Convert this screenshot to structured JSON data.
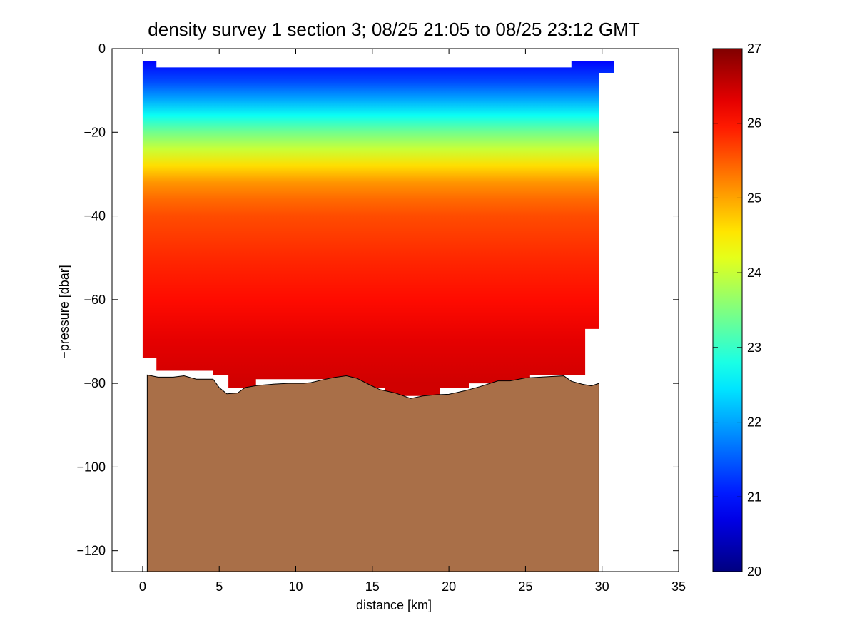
{
  "chart_data": {
    "type": "heatmap",
    "title": "density survey 1 section 3; 08/25 21:05 to 08/25 23:12 GMT",
    "xlabel": "distance [km]",
    "ylabel": "−pressure [dbar]",
    "xlim": [
      -2,
      35
    ],
    "ylim": [
      -125,
      0
    ],
    "x_ticks": [
      0,
      5,
      10,
      15,
      20,
      25,
      30,
      35
    ],
    "x_tick_labels": [
      "0",
      "5",
      "10",
      "15",
      "20",
      "25",
      "30",
      "35"
    ],
    "y_ticks": [
      0,
      -20,
      -40,
      -60,
      -80,
      -100,
      -120
    ],
    "y_tick_labels": [
      "0",
      "−20",
      "−40",
      "−60",
      "−80",
      "−100",
      "−120"
    ],
    "colorbar": {
      "range": [
        20,
        27
      ],
      "ticks": [
        20,
        21,
        22,
        23,
        24,
        25,
        26,
        27
      ],
      "tick_labels": [
        "20",
        "21",
        "22",
        "23",
        "24",
        "25",
        "26",
        "27"
      ],
      "colormap": "jet"
    },
    "grid": false,
    "density_profile": {
      "depth": [
        -3,
        -8,
        -12,
        -16,
        -20,
        -24,
        -28,
        -32,
        -36,
        -40,
        -50,
        -60,
        -70,
        -80
      ],
      "density": [
        20.9,
        21.4,
        22.0,
        22.7,
        23.4,
        24.0,
        24.6,
        25.1,
        25.4,
        25.6,
        25.85,
        26.05,
        26.3,
        26.45
      ]
    },
    "data_top_boundary": {
      "x": [
        0,
        0,
        0.9,
        0.9,
        28,
        28,
        30.8,
        30.8,
        29.8
      ],
      "y": [
        -3,
        -3,
        -3,
        -4.5,
        -4.5,
        -3,
        -3,
        -5.8,
        -5.8
      ]
    },
    "data_bottom_boundary": {
      "x": [
        29.8,
        29.8,
        28.9,
        28.9,
        25.3,
        25.3,
        21.3,
        21.3,
        19.4,
        19.4,
        15.8,
        15.8,
        14.0,
        14.0,
        12.0,
        12.0,
        7.4,
        7.4,
        5.6,
        5.6,
        4.6,
        4.6,
        0.9,
        0.9,
        0
      ],
      "y": [
        -67,
        -67,
        -67,
        -78,
        -78,
        -80,
        -80,
        -81,
        -81,
        -83,
        -83,
        -81,
        -81,
        -80,
        -80,
        -79,
        -79,
        -81,
        -81,
        -78,
        -78,
        -77,
        -77,
        -74,
        -74
      ]
    },
    "bathymetry": {
      "color": "#a96f48",
      "x": [
        0.3,
        1.0,
        2.0,
        2.7,
        3.5,
        4.6,
        5.0,
        5.5,
        6.2,
        6.7,
        7.5,
        8.5,
        9.5,
        10.5,
        11.0,
        11.7,
        12.5,
        13.3,
        14.0,
        14.8,
        15.5,
        16.5,
        17.5,
        18.3,
        19.2,
        20.0,
        21.0,
        22.0,
        23.2,
        24.0,
        25.0,
        26.0,
        27.5,
        28.0,
        28.7,
        29.3,
        29.8
      ],
      "y": [
        -78,
        -78.5,
        -78.5,
        -78.2,
        -79,
        -79,
        -81,
        -82.5,
        -82.3,
        -81,
        -80.5,
        -80.2,
        -80,
        -80,
        -79.8,
        -79.2,
        -78.6,
        -78.2,
        -78.8,
        -80.3,
        -81.5,
        -82.3,
        -83.6,
        -83,
        -82.7,
        -82.6,
        -81.8,
        -80.8,
        -79.4,
        -79.4,
        -78.7,
        -78.5,
        -78.2,
        -79.5,
        -80.2,
        -80.6,
        -80
      ]
    }
  }
}
